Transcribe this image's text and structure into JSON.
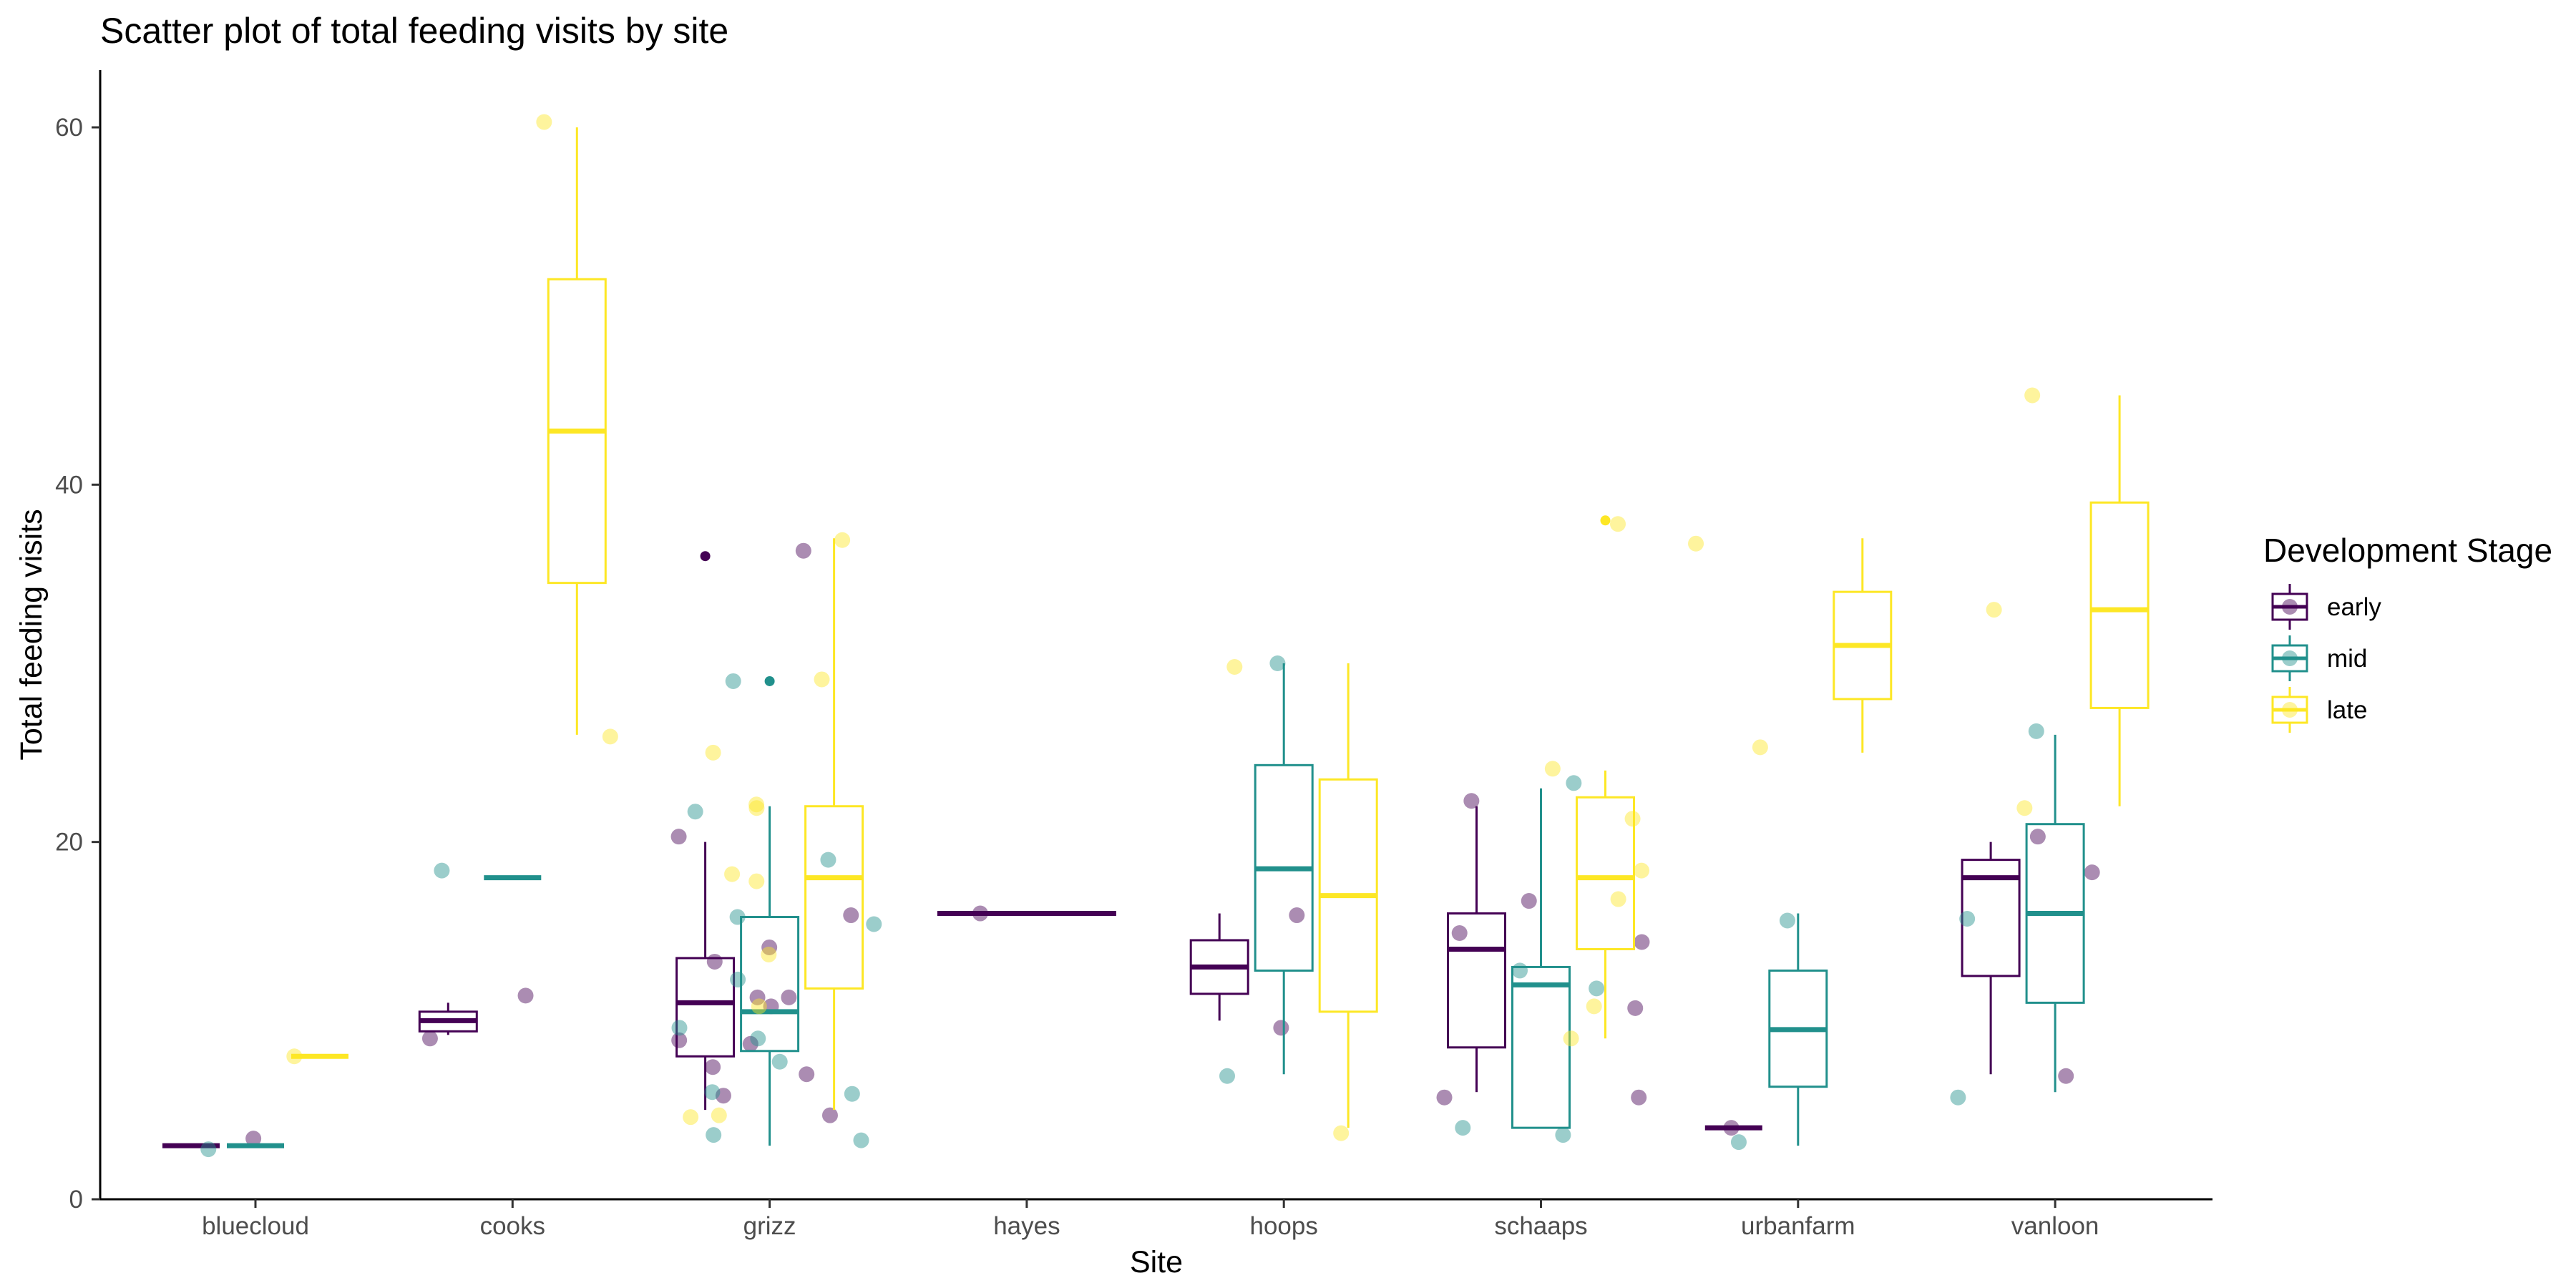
{
  "chart_data": {
    "type": "box",
    "title": "Scatter plot of total feeding visits by site",
    "xlabel": "Site",
    "ylabel": "Total feeding visits",
    "ylim": [
      0,
      63
    ],
    "yticks": [
      0,
      20,
      40,
      60
    ],
    "grid": false,
    "categories": [
      "bluecloud",
      "cooks",
      "grizz",
      "hayes",
      "hoops",
      "schaaps",
      "urbanfarm",
      "vanloon"
    ],
    "legend": {
      "title": "Development Stage",
      "position": "right"
    },
    "series": [
      {
        "name": "early",
        "color": "#440154",
        "boxes": [
          {
            "category": "bluecloud",
            "min": 3,
            "q1": 3,
            "median": 3,
            "q3": 3,
            "max": 3,
            "outliers": [],
            "points": [
              3.4
            ]
          },
          {
            "category": "cooks",
            "min": 9.2,
            "q1": 9.4,
            "median": 10,
            "q3": 10.5,
            "max": 11,
            "outliers": [],
            "points": [
              11.4,
              9
            ]
          },
          {
            "category": "grizz",
            "min": 5,
            "q1": 8,
            "median": 11,
            "q3": 13.5,
            "max": 20,
            "outliers": [
              36
            ],
            "points": [
              13.3,
              11.3,
              10.8,
              8.9,
              15.9,
              11.3,
              8.7,
              5.8,
              4.7,
              36.3,
              20.3,
              14.1,
              7.4,
              7
            ]
          },
          {
            "category": "hayes",
            "min": 16,
            "q1": 16,
            "median": 16,
            "q3": 16,
            "max": 16,
            "outliers": [],
            "points": [
              16
            ]
          },
          {
            "category": "hoops",
            "min": 10,
            "q1": 11.5,
            "median": 13,
            "q3": 14.5,
            "max": 16,
            "outliers": [],
            "points": [
              15.9,
              9.6
            ]
          },
          {
            "category": "schaaps",
            "min": 6,
            "q1": 8.5,
            "median": 14,
            "q3": 16,
            "max": 22,
            "outliers": [],
            "points": [
              22.3,
              5.7,
              10.7,
              14.4,
              14.9,
              16.7,
              5.7
            ]
          },
          {
            "category": "urbanfarm",
            "min": 4,
            "q1": 4,
            "median": 4,
            "q3": 4,
            "max": 4,
            "outliers": [],
            "points": [
              4
            ]
          },
          {
            "category": "vanloon",
            "min": 7,
            "q1": 12.5,
            "median": 18,
            "q3": 19,
            "max": 20,
            "outliers": [],
            "points": [
              20.3,
              6.9,
              18.3
            ]
          }
        ]
      },
      {
        "name": "mid",
        "color": "#21908C",
        "boxes": [
          {
            "category": "bluecloud",
            "min": 3,
            "q1": 3,
            "median": 3,
            "q3": 3,
            "max": 3,
            "outliers": [],
            "points": [
              2.8
            ]
          },
          {
            "category": "cooks",
            "min": 18,
            "q1": 18,
            "median": 18,
            "q3": 18,
            "max": 18,
            "outliers": [],
            "points": [
              18.4
            ]
          },
          {
            "category": "grizz",
            "min": 3,
            "q1": 8.3,
            "median": 10.5,
            "q3": 15.8,
            "max": 22,
            "outliers": [
              29
            ],
            "points": [
              15.4,
              9,
              6,
              7.7,
              29,
              21.7,
              19,
              12.3,
              15.8,
              9.6,
              3.3,
              3.6,
              5.9
            ]
          },
          {
            "category": "hoops",
            "min": 7,
            "q1": 12.8,
            "median": 18.5,
            "q3": 24.3,
            "max": 30,
            "outliers": [],
            "points": [
              30,
              6.9
            ]
          },
          {
            "category": "schaaps",
            "min": 4,
            "q1": 4,
            "median": 12,
            "q3": 13,
            "max": 23,
            "outliers": [],
            "points": [
              3.6,
              12.8,
              11.8,
              23.3,
              4
            ]
          },
          {
            "category": "urbanfarm",
            "min": 3,
            "q1": 6.3,
            "median": 9.5,
            "q3": 12.8,
            "max": 16,
            "outliers": [],
            "points": [
              3.2,
              15.6
            ]
          },
          {
            "category": "vanloon",
            "min": 6,
            "q1": 11,
            "median": 16,
            "q3": 21,
            "max": 26,
            "outliers": [],
            "points": [
              15.7,
              5.7,
              26.2
            ]
          }
        ]
      },
      {
        "name": "late",
        "color": "#FDE725",
        "boxes": [
          {
            "category": "bluecloud",
            "min": 8,
            "q1": 8,
            "median": 8,
            "q3": 8,
            "max": 8,
            "outliers": [],
            "points": [
              8
            ]
          },
          {
            "category": "cooks",
            "min": 26,
            "q1": 34.5,
            "median": 43,
            "q3": 51.5,
            "max": 60,
            "outliers": [],
            "points": [
              60.3,
              25.9
            ]
          },
          {
            "category": "grizz",
            "min": 5,
            "q1": 11.8,
            "median": 18,
            "q3": 22,
            "max": 37,
            "outliers": [],
            "points": [
              18.2,
              22.1,
              13.7,
              17.8,
              36.9,
              10.8,
              21.9,
              4.7,
              25,
              29.1,
              4.6
            ]
          },
          {
            "category": "hoops",
            "min": 4,
            "q1": 10.5,
            "median": 17,
            "q3": 23.5,
            "max": 30,
            "outliers": [],
            "points": [
              29.8,
              3.7
            ]
          },
          {
            "category": "schaaps",
            "min": 9,
            "q1": 14,
            "median": 18,
            "q3": 22.5,
            "max": 24,
            "outliers": [
              38
            ],
            "points": [
              37.8,
              18.4,
              21.3,
              16.8,
              10.8,
              9,
              24.1
            ]
          },
          {
            "category": "urbanfarm",
            "min": 25,
            "q1": 28,
            "median": 31,
            "q3": 34,
            "max": 37,
            "outliers": [],
            "points": [
              36.7,
              25.3
            ]
          },
          {
            "category": "vanloon",
            "min": 22,
            "q1": 27.5,
            "median": 33,
            "q3": 39,
            "max": 45,
            "outliers": [],
            "points": [
              21.9,
              33,
              45
            ]
          }
        ]
      }
    ]
  }
}
